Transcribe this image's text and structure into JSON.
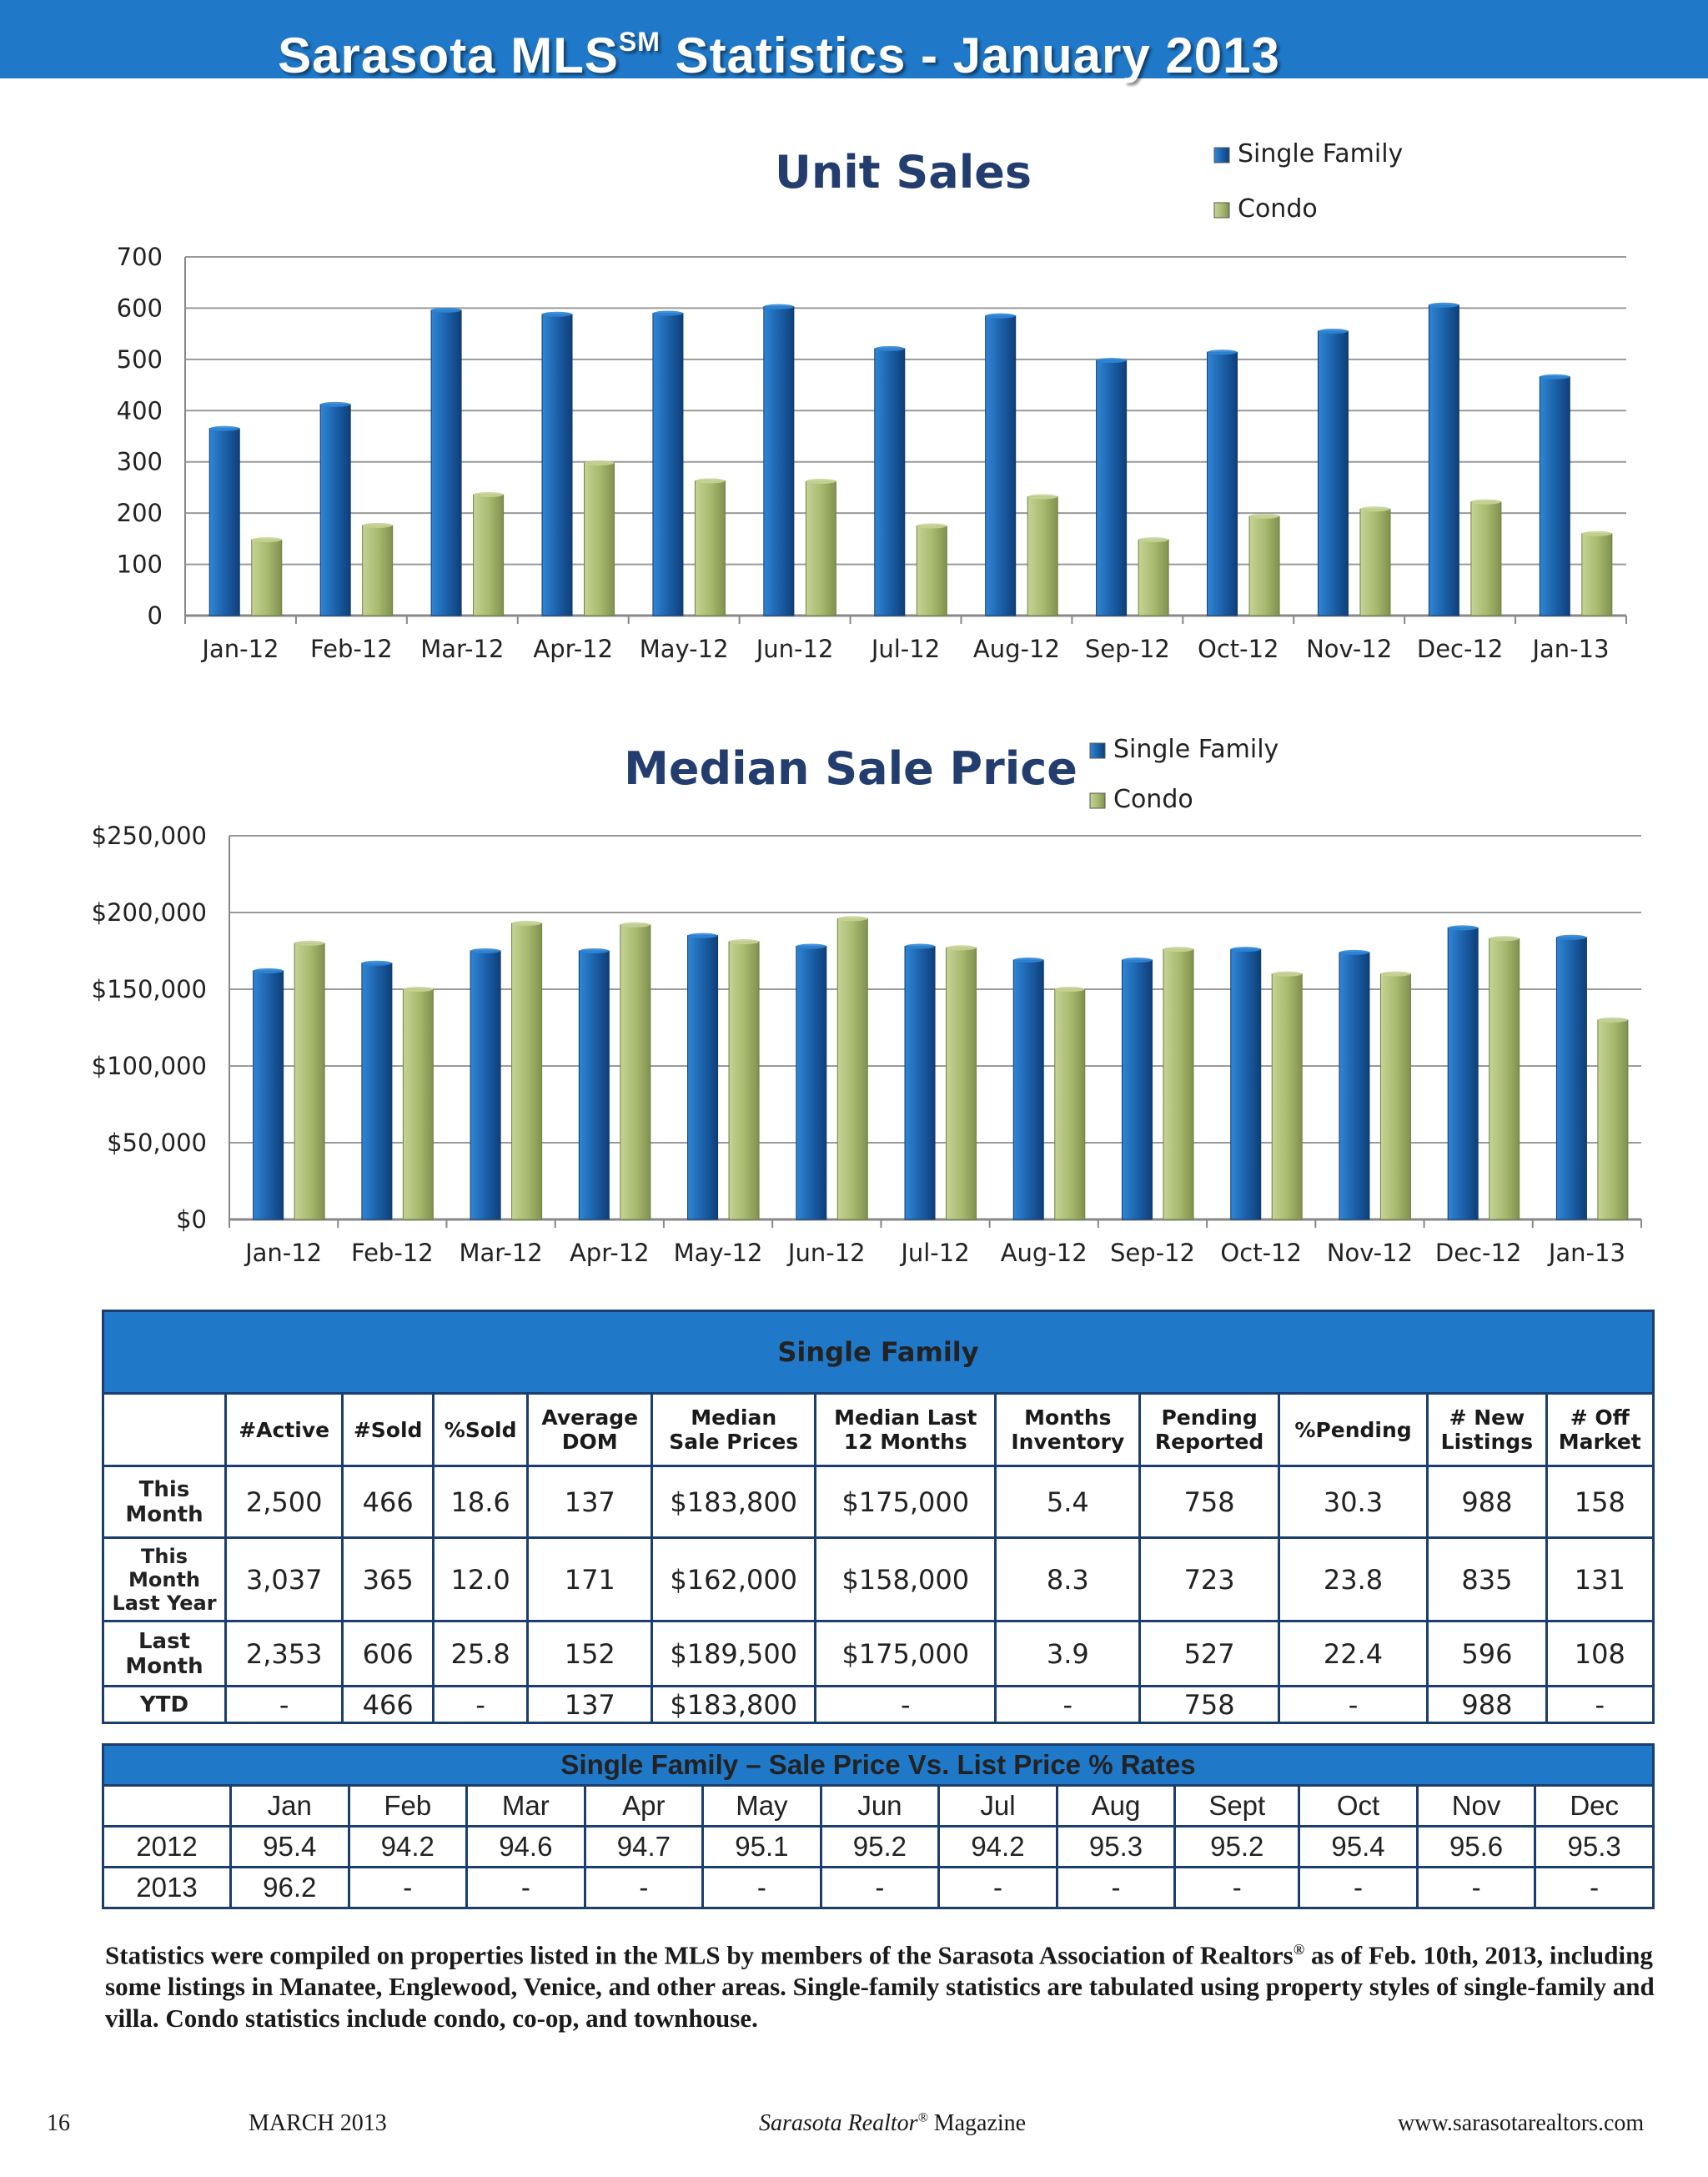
{
  "header": {
    "title_prefix": "Sarasota MLS",
    "title_sup": "SM",
    "title_suffix": " Statistics - January 2013"
  },
  "chart_data": [
    {
      "type": "bar",
      "title": "Unit Sales",
      "categories": [
        "Jan-12",
        "Feb-12",
        "Mar-12",
        "Apr-12",
        "May-12",
        "Jun-12",
        "Jul-12",
        "Aug-12",
        "Sep-12",
        "Oct-12",
        "Nov-12",
        "Dec-12",
        "Jan-13"
      ],
      "series": [
        {
          "name": "Single Family",
          "color": "#1f6fbf",
          "values": [
            365,
            412,
            596,
            588,
            590,
            603,
            521,
            585,
            498,
            514,
            555,
            606,
            466
          ]
        },
        {
          "name": "Condo",
          "color": "#a4b86a",
          "values": [
            148,
            176,
            236,
            298,
            263,
            262,
            175,
            232,
            148,
            194,
            208,
            222,
            160
          ]
        }
      ],
      "yticks": [
        "0",
        "100",
        "200",
        "300",
        "400",
        "500",
        "600",
        "700"
      ],
      "ylim": [
        0,
        700
      ],
      "legend": "top-right"
    },
    {
      "type": "bar",
      "title": "Median Sale Price",
      "categories": [
        "Jan-12",
        "Feb-12",
        "Mar-12",
        "Apr-12",
        "May-12",
        "Jun-12",
        "Jul-12",
        "Aug-12",
        "Sep-12",
        "Oct-12",
        "Nov-12",
        "Dec-12",
        "Jan-13"
      ],
      "series": [
        {
          "name": "Single Family",
          "color": "#1f6fbf",
          "values": [
            162000,
            167000,
            175000,
            175000,
            185000,
            178000,
            178000,
            169000,
            169000,
            176000,
            174000,
            190000,
            183800
          ]
        },
        {
          "name": "Condo",
          "color": "#a4b86a",
          "values": [
            180000,
            150000,
            193000,
            192000,
            181000,
            196000,
            177000,
            150000,
            176000,
            160000,
            160000,
            183000,
            130000
          ]
        }
      ],
      "yticks": [
        "$0",
        "$50,000",
        "$100,000",
        "$150,000",
        "$200,000",
        "$250,000"
      ],
      "ylim": [
        0,
        250000
      ],
      "legend": "top-right"
    }
  ],
  "single_family": {
    "title": "Single Family",
    "columns": [
      {
        "l1": "#Active",
        "l2": ""
      },
      {
        "l1": "#Sold",
        "l2": ""
      },
      {
        "l1": "%Sold",
        "l2": ""
      },
      {
        "l1": "Average",
        "l2": "DOM"
      },
      {
        "l1": "Median",
        "l2": "Sale Prices"
      },
      {
        "l1": "Median Last",
        "l2": "12 Months"
      },
      {
        "l1": "Months",
        "l2": "Inventory"
      },
      {
        "l1": "Pending",
        "l2": "Reported"
      },
      {
        "l1": "%Pending",
        "l2": ""
      },
      {
        "l1": "# New",
        "l2": "Listings"
      },
      {
        "l1": "# Off",
        "l2": "Market"
      }
    ],
    "rows": [
      {
        "label": [
          "This",
          "Month"
        ],
        "values": [
          "2,500",
          "466",
          "18.6",
          "137",
          "$183,800",
          "$175,000",
          "5.4",
          "758",
          "30.3",
          "988",
          "158"
        ]
      },
      {
        "label": [
          "This",
          "Month",
          "Last Year"
        ],
        "values": [
          "3,037",
          "365",
          "12.0",
          "171",
          "$162,000",
          "$158,000",
          "8.3",
          "723",
          "23.8",
          "835",
          "131"
        ]
      },
      {
        "label": [
          "Last",
          "Month"
        ],
        "values": [
          "2,353",
          "606",
          "25.8",
          "152",
          "$189,500",
          "$175,000",
          "3.9",
          "527",
          "22.4",
          "596",
          "108"
        ]
      },
      {
        "label": [
          "YTD"
        ],
        "values": [
          "-",
          "466",
          "-",
          "137",
          "$183,800",
          "-",
          "-",
          "758",
          "-",
          "988",
          "-"
        ]
      }
    ]
  },
  "sale_vs_list": {
    "title": "Single Family – Sale Price Vs. List Price % Rates",
    "months": [
      "Jan",
      "Feb",
      "Mar",
      "Apr",
      "May",
      "Jun",
      "Jul",
      "Aug",
      "Sept",
      "Oct",
      "Nov",
      "Dec"
    ],
    "rows": [
      {
        "year": "2012",
        "values": [
          "95.4",
          "94.2",
          "94.6",
          "94.7",
          "95.1",
          "95.2",
          "94.2",
          "95.3",
          "95.2",
          "95.4",
          "95.6",
          "95.3"
        ]
      },
      {
        "year": "2013",
        "values": [
          "96.2",
          "-",
          "-",
          "-",
          "-",
          "-",
          "-",
          "-",
          "-",
          "-",
          "-",
          "-"
        ]
      }
    ]
  },
  "footnote": {
    "part1": "Statistics were compiled on properties listed in the MLS by members of the Sarasota Association of Realtors",
    "reg": "®",
    "part2": " as of Feb. 10th, 2013, including some listings in Manatee, Englewood, Venice, and other areas.  Single-family statistics are tabulated using property styles of single-family and villa. Condo statistics include condo, co-op, and townhouse."
  },
  "footer": {
    "page_number": "16",
    "issue": "MARCH 2013",
    "magazine_name": "Sarasota Realtor",
    "magazine_reg": "®",
    "magazine_suffix": " Magazine",
    "website": "www.sarasotarealtors.com"
  }
}
